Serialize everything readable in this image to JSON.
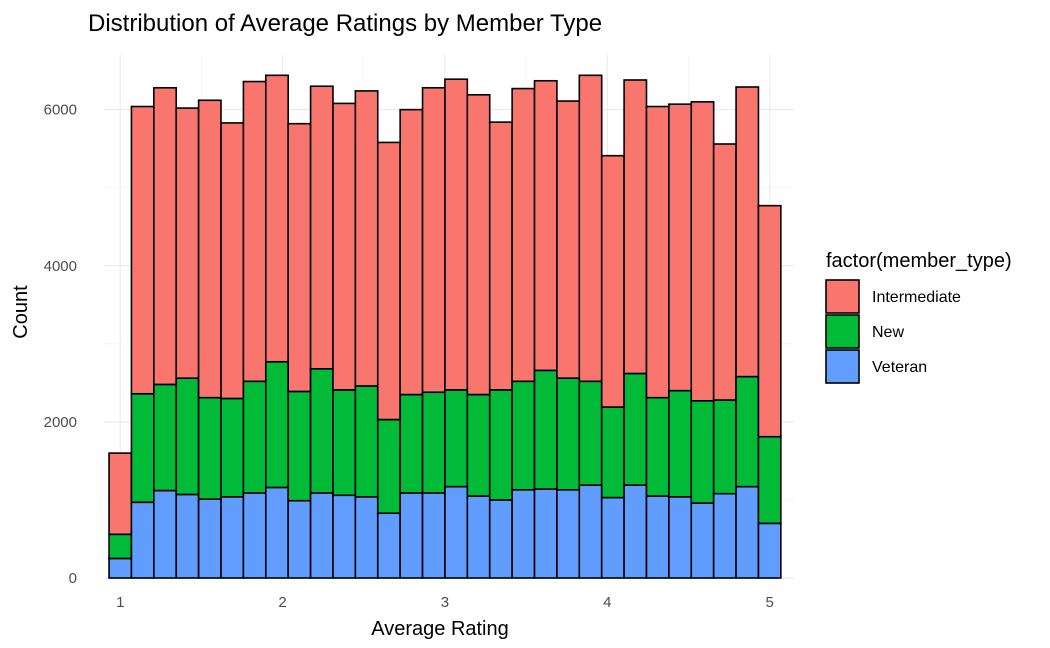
{
  "chart_data": {
    "type": "bar",
    "stacked": true,
    "title": "Distribution of Average Ratings by Member Type",
    "xlabel": "Average Rating",
    "ylabel": "Count",
    "xlim": [
      0.9,
      5.15
    ],
    "ylim": [
      0,
      6700
    ],
    "xticks": [
      1,
      2,
      3,
      4,
      5
    ],
    "xtick_labels": [
      "1",
      "2",
      "3",
      "4",
      "5"
    ],
    "yticks": [
      0,
      2000,
      4000,
      6000
    ],
    "ytick_labels": [
      "0",
      "2000",
      "4000",
      "6000"
    ],
    "grid": true,
    "bin_width": 0.1379,
    "bin_centers": [
      1.0,
      1.1379,
      1.2759,
      1.4138,
      1.5517,
      1.6897,
      1.8276,
      1.9655,
      2.1034,
      2.2414,
      2.3793,
      2.5172,
      2.6552,
      2.7931,
      2.931,
      3.069,
      3.2069,
      3.3448,
      3.4828,
      3.6207,
      3.7586,
      3.8966,
      4.0345,
      4.1724,
      4.3103,
      4.4483,
      4.5862,
      4.7241,
      4.8621,
      5.0
    ],
    "legend": {
      "title": "factor(member_type)",
      "placement": "right",
      "entries": [
        {
          "label": "Intermediate",
          "color": "#F8766D"
        },
        {
          "label": "New",
          "color": "#00BA38"
        },
        {
          "label": "Veteran",
          "color": "#619CFF"
        }
      ]
    },
    "series": [
      {
        "name": "Veteran",
        "color": "#619CFF",
        "values": [
          250,
          970,
          1120,
          1070,
          1010,
          1040,
          1090,
          1160,
          990,
          1090,
          1060,
          1040,
          830,
          1090,
          1090,
          1170,
          1050,
          1000,
          1130,
          1140,
          1130,
          1190,
          1030,
          1190,
          1050,
          1040,
          960,
          1080,
          1170,
          700
        ]
      },
      {
        "name": "New",
        "color": "#00BA38",
        "values": [
          310,
          1390,
          1360,
          1490,
          1300,
          1260,
          1430,
          1610,
          1400,
          1590,
          1350,
          1420,
          1200,
          1260,
          1290,
          1240,
          1300,
          1410,
          1390,
          1520,
          1430,
          1330,
          1160,
          1430,
          1260,
          1360,
          1310,
          1200,
          1410,
          1110
        ]
      },
      {
        "name": "Intermediate",
        "color": "#F8766D",
        "values": [
          1040,
          3680,
          3800,
          3460,
          3810,
          3530,
          3840,
          3670,
          3430,
          3620,
          3670,
          3780,
          3550,
          3650,
          3900,
          3980,
          3840,
          3430,
          3750,
          3710,
          3550,
          3920,
          3220,
          3760,
          3730,
          3670,
          3830,
          3280,
          3710,
          2960
        ]
      }
    ]
  }
}
